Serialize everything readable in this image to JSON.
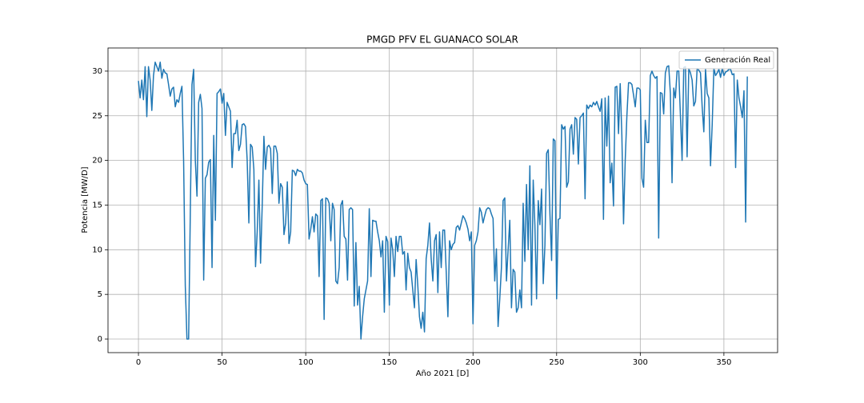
{
  "chart_data": {
    "type": "line",
    "title": "PMGD PFV EL GUANACO SOLAR",
    "x_label": "Año 2021 [D]",
    "y_label": "Potencia [MW/D]",
    "x": [
      0,
      1,
      2,
      3,
      4,
      5,
      6,
      7,
      8,
      9,
      10,
      11,
      12,
      13,
      14,
      15,
      16,
      17,
      18,
      19,
      20,
      21,
      22,
      23,
      24,
      25,
      26,
      27,
      28,
      29,
      30,
      31,
      32,
      33,
      34,
      35,
      36,
      37,
      38,
      39,
      40,
      41,
      42,
      43,
      44,
      45,
      46,
      47,
      48,
      49,
      50,
      51,
      52,
      53,
      54,
      55,
      56,
      57,
      58,
      59,
      60,
      61,
      62,
      63,
      64,
      65,
      66,
      67,
      68,
      69,
      70,
      71,
      72,
      73,
      74,
      75,
      76,
      77,
      78,
      79,
      80,
      81,
      82,
      83,
      84,
      85,
      86,
      87,
      88,
      89,
      90,
      91,
      92,
      93,
      94,
      95,
      96,
      97,
      98,
      99,
      100,
      101,
      102,
      103,
      104,
      105,
      106,
      107,
      108,
      109,
      110,
      111,
      112,
      113,
      114,
      115,
      116,
      117,
      118,
      119,
      120,
      121,
      122,
      123,
      124,
      125,
      126,
      127,
      128,
      129,
      130,
      131,
      132,
      133,
      134,
      135,
      136,
      137,
      138,
      139,
      140,
      141,
      142,
      143,
      144,
      145,
      146,
      147,
      148,
      149,
      150,
      151,
      152,
      153,
      154,
      155,
      156,
      157,
      158,
      159,
      160,
      161,
      162,
      163,
      164,
      165,
      166,
      167,
      168,
      169,
      170,
      171,
      172,
      173,
      174,
      175,
      176,
      177,
      178,
      179,
      180,
      181,
      182,
      183,
      184,
      185,
      186,
      187,
      188,
      189,
      190,
      191,
      192,
      193,
      194,
      195,
      196,
      197,
      198,
      199,
      200,
      201,
      202,
      203,
      204,
      205,
      206,
      207,
      208,
      209,
      210,
      211,
      212,
      213,
      214,
      215,
      216,
      217,
      218,
      219,
      220,
      221,
      222,
      223,
      224,
      225,
      226,
      227,
      228,
      229,
      230,
      231,
      232,
      233,
      234,
      235,
      236,
      237,
      238,
      239,
      240,
      241,
      242,
      243,
      244,
      245,
      246,
      247,
      248,
      249,
      250,
      251,
      252,
      253,
      254,
      255,
      256,
      257,
      258,
      259,
      260,
      261,
      262,
      263,
      264,
      265,
      266,
      267,
      268,
      269,
      270,
      271,
      272,
      273,
      274,
      275,
      276,
      277,
      278,
      279,
      280,
      281,
      282,
      283,
      284,
      285,
      286,
      287,
      288,
      289,
      290,
      291,
      292,
      293,
      294,
      295,
      296,
      297,
      298,
      299,
      300,
      301,
      302,
      303,
      304,
      305,
      306,
      307,
      308,
      309,
      310,
      311,
      312,
      313,
      314,
      315,
      316,
      317,
      318,
      319,
      320,
      321,
      322,
      323,
      324,
      325,
      326,
      327,
      328,
      329,
      330,
      331,
      332,
      333,
      334,
      335,
      336,
      337,
      338,
      339,
      340,
      341,
      342,
      343,
      344,
      345,
      346,
      347,
      348,
      349,
      350,
      351,
      352,
      353,
      354,
      355,
      356,
      357,
      358,
      359,
      360,
      361,
      362,
      363,
      364
    ],
    "series": [
      {
        "name": "Generación Real",
        "color": "#1f77b4",
        "values": [
          28.9,
          27,
          29,
          26.8,
          30.5,
          24.9,
          30.5,
          29,
          25.6,
          29.5,
          31,
          30.5,
          30,
          31,
          29.2,
          30.2,
          29.8,
          29.7,
          28.5,
          27.2,
          28,
          28.2,
          26,
          26.8,
          26.5,
          27.5,
          28.3,
          20,
          6,
          0,
          0,
          14,
          28.5,
          30.2,
          20,
          16,
          26.5,
          27.4,
          25.8,
          6.6,
          18,
          18.4,
          19.8,
          20.1,
          8,
          22.8,
          13.3,
          27.5,
          27.7,
          28,
          26.4,
          27.5,
          22.8,
          26.5,
          26,
          25.5,
          19.2,
          23,
          23,
          24.5,
          21.1,
          21.8,
          24,
          24.1,
          23.8,
          20,
          13,
          21.8,
          21.5,
          19,
          8.1,
          12,
          17.8,
          8.5,
          15,
          22.7,
          19,
          21.5,
          21.7,
          21.3,
          16.3,
          21.6,
          21.6,
          20.8,
          15.2,
          17.4,
          17,
          11.7,
          13,
          17.6,
          10.7,
          12,
          18.9,
          18.8,
          18.3,
          19,
          18.8,
          18.8,
          18.6,
          17.8,
          17.4,
          17.3,
          11.2,
          12.3,
          13.7,
          12,
          14,
          13.8,
          7,
          15.5,
          15.7,
          2.2,
          15.8,
          15.7,
          15.2,
          11,
          15.2,
          14.5,
          6.5,
          6.2,
          8,
          15,
          15.5,
          11.5,
          11.2,
          6.6,
          14.5,
          14.7,
          14.5,
          3.7,
          10.8,
          3.8,
          5.9,
          0,
          2.5,
          4.5,
          5.5,
          6.5,
          14.6,
          7,
          13.3,
          13.2,
          13.2,
          12,
          11,
          9.2,
          11,
          3,
          11.5,
          10.9,
          3.8,
          11.3,
          10,
          7,
          11.5,
          9.8,
          11.5,
          11.5,
          9.5,
          9.8,
          5.5,
          9.6,
          8,
          7.5,
          5.5,
          3.5,
          8.9,
          6,
          2.5,
          1.2,
          3,
          0.8,
          9,
          10.5,
          13,
          9,
          6.5,
          11,
          11.7,
          5.2,
          12,
          8,
          12.2,
          12.2,
          7.5,
          2.5,
          11,
          10,
          10.6,
          10.8,
          12.5,
          12.7,
          12.2,
          13,
          13.8,
          13.5,
          13,
          12.3,
          11,
          12,
          1.7,
          10.5,
          11,
          12,
          14.7,
          14.2,
          13,
          13.8,
          14.5,
          14.7,
          14.6,
          14,
          13.5,
          6.5,
          10.1,
          1.4,
          4.5,
          8,
          15.5,
          15.8,
          6.5,
          10,
          13.3,
          3.5,
          7.8,
          7.5,
          3,
          3.5,
          5.5,
          3.5,
          15.2,
          8.7,
          17.3,
          10,
          19.4,
          3.8,
          17.8,
          12.8,
          4.5,
          15.5,
          12.8,
          16.8,
          6.2,
          10.5,
          20.8,
          21.2,
          14,
          8.8,
          22.4,
          22.2,
          4.5,
          13.4,
          13.5,
          24,
          23.5,
          23.8,
          17,
          17.6,
          23.5,
          24,
          20.7,
          24.8,
          24.6,
          19.6,
          24.8,
          25,
          25.3,
          15.7,
          26.2,
          25.8,
          26.2,
          26,
          26.5,
          26.2,
          26.6,
          26,
          25.5,
          26.9,
          13.4,
          27,
          21.6,
          27.2,
          17.5,
          19.7,
          14.9,
          28.2,
          28.3,
          23,
          28.6,
          22.8,
          12.9,
          20,
          25,
          28.7,
          28.7,
          28.5,
          27.3,
          26,
          28.1,
          28.1,
          27.9,
          18,
          17,
          24.5,
          22,
          22,
          29.5,
          30,
          29.5,
          29.2,
          29.4,
          11.3,
          27.6,
          27.5,
          25.2,
          29.8,
          30.5,
          30.6,
          27.5,
          17.5,
          28.1,
          27,
          30,
          30,
          25,
          20,
          30.4,
          30.5,
          20.4,
          30.3,
          29.8,
          29,
          26.1,
          26.6,
          30.3,
          30.1,
          29.8,
          26,
          23.2,
          30.2,
          27.5,
          27,
          19.4,
          24,
          30.3,
          29.5,
          29.8,
          30.2,
          29.3,
          30.3,
          29.5,
          29.9,
          30,
          30.2,
          30.2,
          29.6,
          29.7,
          19.2,
          29,
          27,
          26,
          24.8,
          27.8,
          13.1,
          29.4
        ]
      }
    ],
    "xlim": [
      -18.2,
      382.1
    ],
    "ylim": [
      -1.52,
      32.59
    ],
    "xticks": [
      0,
      50,
      100,
      150,
      200,
      250,
      300,
      350
    ],
    "yticks": [
      0,
      5,
      10,
      15,
      20,
      25,
      30
    ],
    "grid": true,
    "legend": "upper right"
  }
}
